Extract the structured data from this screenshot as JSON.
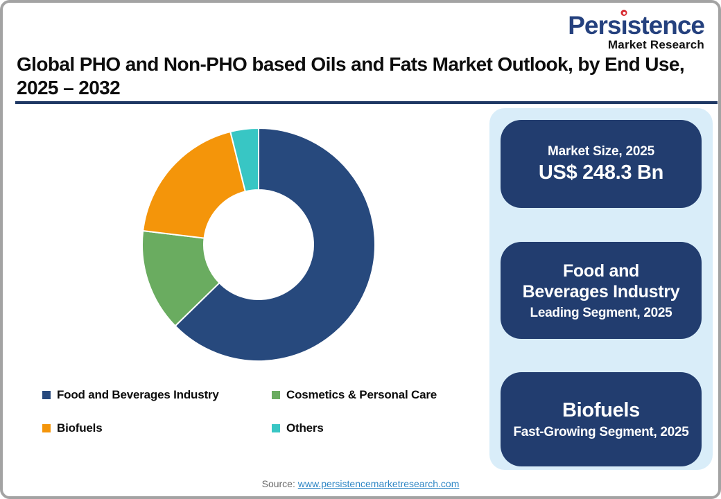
{
  "logo": {
    "name": "Persistence",
    "tagline": "Market Research",
    "name_color": "#25417E",
    "dot_color": "#D7282F"
  },
  "title": {
    "line1": "Global PHO and Non-PHO based Oils and Fats Market Outlook, by End Use,",
    "line2": "2025 – 2032",
    "underline_color": "#1F3864"
  },
  "chart_data": {
    "type": "pie",
    "subtype": "donut",
    "title": "Global PHO and Non-PHO based Oils and Fats Market Outlook, by End Use, 2025 – 2032",
    "categories": [
      "Food and Beverages Industry",
      "Cosmetics & Personal Care",
      "Biofuels",
      "Others"
    ],
    "values": [
      62.7,
      14.2,
      19.2,
      3.9
    ],
    "unit": "%",
    "colors": [
      "#27497D",
      "#6AAC60",
      "#F4950A",
      "#38C6C4"
    ],
    "start_angle_deg": 0,
    "direction": "clockwise",
    "inner_radius_ratio": 0.47,
    "slice_gap_color": "#FFFFFF",
    "legend_position": "bottom"
  },
  "panel": {
    "bg_color": "#D9EDF9",
    "box_color": "#223D6F",
    "boxes": [
      {
        "label": "Market Size, 2025",
        "value": "US$ 248.3 Bn"
      },
      {
        "title_line1": "Food and",
        "title_line2": "Beverages Industry",
        "subtitle": "Leading Segment, 2025"
      },
      {
        "title": "Biofuels",
        "subtitle": "Fast-Growing Segment, 2025"
      }
    ]
  },
  "source": {
    "label": "Source:",
    "link_text": "www.persistencemarketresearch.com",
    "link_color": "#2E86C5"
  }
}
